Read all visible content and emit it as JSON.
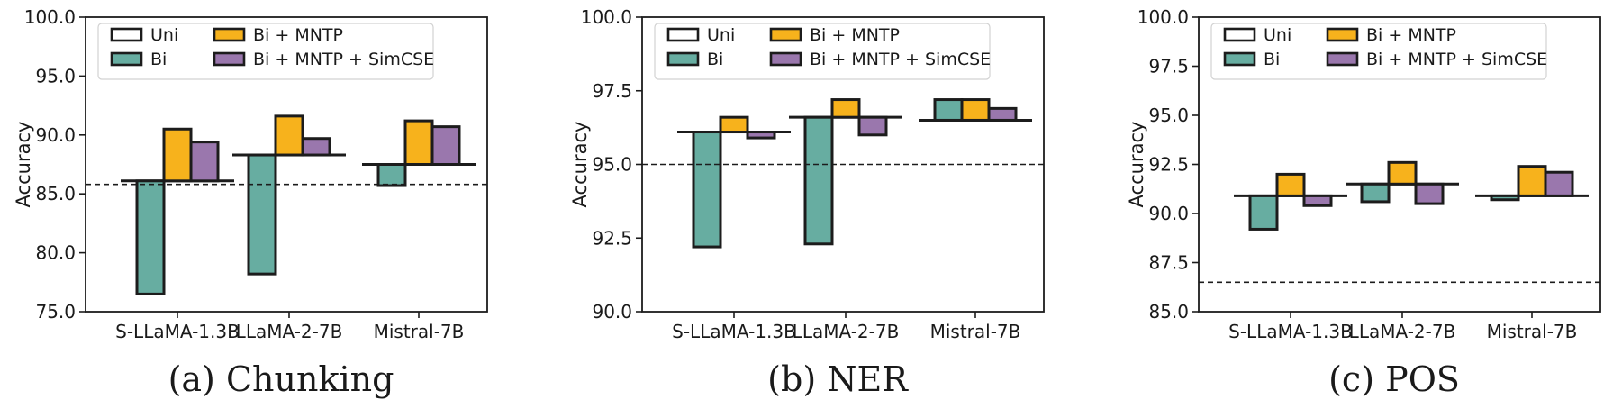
{
  "colors": {
    "Uni": "#ffffff",
    "Bi": "#67ada1",
    "Bi + MNTP": "#f7b21c",
    "Bi + MNTP + SimCSE": "#9a77ad",
    "edge": "#1c1c1c"
  },
  "chart_data": [
    {
      "type": "bar",
      "title": "(a) Chunking",
      "ylabel": "Accuracy",
      "ylim": [
        75.0,
        100.0
      ],
      "yticks": [
        "75.0",
        "80.0",
        "85.0",
        "90.0",
        "95.0",
        "100.0"
      ],
      "baseline": 85.8,
      "categories": [
        "S-LLaMA-1.3B",
        "LLaMA-2-7B",
        "Mistral-7B"
      ],
      "series": [
        {
          "name": "Uni",
          "values": [
            86.1,
            88.3,
            87.5
          ]
        },
        {
          "name": "Bi",
          "values": [
            76.5,
            78.2,
            85.7
          ]
        },
        {
          "name": "Bi + MNTP",
          "values": [
            90.5,
            91.6,
            91.2
          ]
        },
        {
          "name": "Bi + MNTP + SimCSE",
          "values": [
            89.4,
            89.7,
            90.7
          ]
        }
      ]
    },
    {
      "type": "bar",
      "title": "(b) NER",
      "ylabel": "Accuracy",
      "ylim": [
        90.0,
        100.0
      ],
      "yticks": [
        "90.0",
        "92.5",
        "95.0",
        "97.5",
        "100.0"
      ],
      "baseline": 95.0,
      "categories": [
        "S-LLaMA-1.3B",
        "LLaMA-2-7B",
        "Mistral-7B"
      ],
      "series": [
        {
          "name": "Uni",
          "values": [
            96.1,
            96.6,
            96.5
          ]
        },
        {
          "name": "Bi",
          "values": [
            92.2,
            92.3,
            97.2
          ]
        },
        {
          "name": "Bi + MNTP",
          "values": [
            96.6,
            97.2,
            97.2
          ]
        },
        {
          "name": "Bi + MNTP + SimCSE",
          "values": [
            95.9,
            96.0,
            96.9
          ]
        }
      ]
    },
    {
      "type": "bar",
      "title": "(c) POS",
      "ylabel": "Accuracy",
      "ylim": [
        85.0,
        100.0
      ],
      "yticks": [
        "85.0",
        "87.5",
        "90.0",
        "92.5",
        "95.0",
        "97.5",
        "100.0"
      ],
      "baseline": 86.5,
      "categories": [
        "S-LLaMA-1.3B",
        "LLaMA-2-7B",
        "Mistral-7B"
      ],
      "series": [
        {
          "name": "Uni",
          "values": [
            90.9,
            91.5,
            90.9
          ]
        },
        {
          "name": "Bi",
          "values": [
            89.2,
            90.6,
            90.7
          ]
        },
        {
          "name": "Bi + MNTP",
          "values": [
            92.0,
            92.6,
            92.4
          ]
        },
        {
          "name": "Bi + MNTP + SimCSE",
          "values": [
            90.4,
            90.5,
            92.1
          ]
        }
      ]
    }
  ]
}
